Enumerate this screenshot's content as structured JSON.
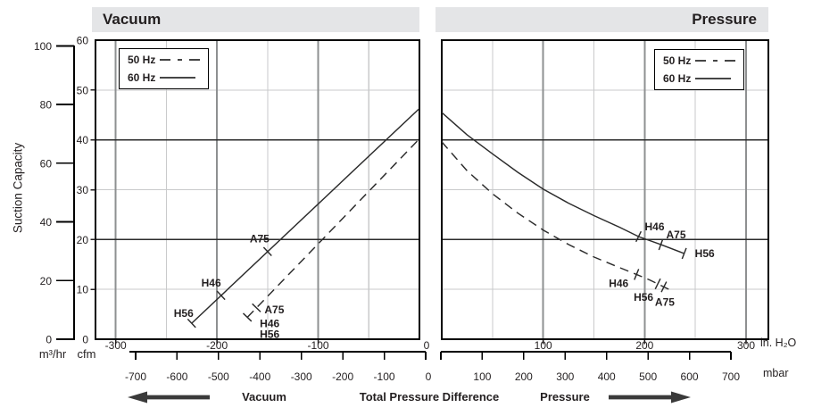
{
  "headers": {
    "vacuum": "Vacuum",
    "pressure": "Pressure"
  },
  "y_axis": {
    "title": "Suction Capacity",
    "unit_left": "m³/hr",
    "unit_right": "cfm",
    "m3hr_ticks": [
      0,
      20,
      40,
      60,
      80,
      100
    ],
    "cfm_ticks": [
      0,
      10,
      20,
      30,
      40,
      50,
      60
    ]
  },
  "x_axis": {
    "unit_primary": "in. H₂O",
    "unit_secondary": "mbar",
    "zero_label": "0",
    "direction_left_label": "Vacuum",
    "center_label": "Total Pressure Difference",
    "direction_right_label": "Pressure"
  },
  "legend": {
    "items": [
      {
        "label": "50 Hz",
        "style": "dashed"
      },
      {
        "label": "60 Hz",
        "style": "solid"
      }
    ]
  },
  "colors": {
    "header_bar": "#e4e5e7",
    "grid_minor": "#c9cacb",
    "grid_major_v": "#8e9091",
    "grid_major_h": "#2b2b2b",
    "border": "#000000",
    "line": "#2b2b2b",
    "text": "#231f20"
  },
  "chart_data": [
    {
      "id": "vacuum-panel",
      "type": "line",
      "title": "Vacuum",
      "xlabel": "Total Pressure Difference",
      "ylabel": "Suction Capacity",
      "x_unit": "in. H2O",
      "x_range": [
        -320,
        0
      ],
      "x_ticks": [
        -300,
        -200,
        -100
      ],
      "x_minor": [
        -250,
        -150,
        -50
      ],
      "mbar_ticks": [
        -700,
        -600,
        -500,
        -400,
        -300,
        -200,
        -100,
        0
      ],
      "y_unit": "cfm",
      "y_range": [
        0,
        60
      ],
      "grid": true,
      "legend_position": "top-left",
      "series": [
        {
          "name": "50 Hz",
          "line": "dashed",
          "points": [
            [
              -170,
              4.4
            ],
            [
              0,
              40.2
            ]
          ],
          "markers": [
            {
              "x": -161,
              "y": 6.3,
              "label": "A75",
              "anchor": "start",
              "dx": 9,
              "dy": 6
            },
            {
              "x": -170,
              "y": 4.4,
              "label": "H46",
              "anchor": "start",
              "dx": 14,
              "dy": 11
            },
            {
              "x": -170,
              "y": 4.4,
              "label": "H56",
              "anchor": "start",
              "dx": 14,
              "dy": 23,
              "tick": false
            }
          ]
        },
        {
          "name": "60 Hz",
          "line": "solid",
          "points": [
            [
              -225,
              3.2
            ],
            [
              0,
              46.3
            ]
          ],
          "markers": [
            {
              "x": -150,
              "y": 17.6,
              "label": "A75",
              "anchor": "end",
              "dx": 2,
              "dy": -10
            },
            {
              "x": -196,
              "y": 8.8,
              "label": "H46",
              "anchor": "end",
              "dx": 0,
              "dy": -10
            },
            {
              "x": -225,
              "y": 3.2,
              "label": "H56",
              "anchor": "end",
              "dx": 2,
              "dy": -7
            }
          ]
        }
      ]
    },
    {
      "id": "pressure-panel",
      "type": "line",
      "title": "Pressure",
      "xlabel": "Total Pressure Difference",
      "ylabel": "Suction Capacity",
      "x_unit": "in. H2O",
      "x_range": [
        0,
        322
      ],
      "x_ticks": [
        100,
        200,
        300
      ],
      "x_minor": [
        50,
        150,
        250
      ],
      "mbar_ticks": [
        0,
        100,
        200,
        300,
        400,
        500,
        600,
        700
      ],
      "y_unit": "cfm",
      "y_range": [
        0,
        60
      ],
      "grid": true,
      "legend_position": "top-right",
      "series": [
        {
          "name": "50 Hz",
          "line": "dashed",
          "points": [
            [
              0,
              39.6
            ],
            [
              25,
              33.8
            ],
            [
              50,
              29.2
            ],
            [
              75,
              25.3
            ],
            [
              100,
              21.9
            ],
            [
              125,
              19.0
            ],
            [
              150,
              16.5
            ],
            [
              175,
              14.4
            ],
            [
              192,
              13.0
            ],
            [
              205,
              11.9
            ],
            [
              213,
              11.1
            ],
            [
              224,
              10.0
            ]
          ],
          "markers": [
            {
              "x": 192,
              "y": 13.0,
              "label": "H46",
              "anchor": "end",
              "dx": -9,
              "dy": 14
            },
            {
              "x": 213,
              "y": 11.1,
              "label": "H56",
              "anchor": "end",
              "dx": -5,
              "dy": 19
            },
            {
              "x": 219,
              "y": 10.5,
              "label": "A75",
              "anchor": "start",
              "dx": -10,
              "dy": 21
            }
          ]
        },
        {
          "name": "60 Hz",
          "line": "solid",
          "points": [
            [
              0,
              45.5
            ],
            [
              25,
              41.0
            ],
            [
              50,
              37.2
            ],
            [
              75,
              33.5
            ],
            [
              100,
              30.1
            ],
            [
              125,
              27.3
            ],
            [
              150,
              24.8
            ],
            [
              175,
              22.5
            ],
            [
              194,
              20.6
            ],
            [
              216,
              19.0
            ],
            [
              239,
              17.2
            ]
          ],
          "markers": [
            {
              "x": 194,
              "y": 20.6,
              "label": "H46",
              "anchor": "start",
              "dx": 7,
              "dy": -7
            },
            {
              "x": 216,
              "y": 19.0,
              "label": "A75",
              "anchor": "start",
              "dx": 6,
              "dy": -7
            },
            {
              "x": 239,
              "y": 17.2,
              "label": "H56",
              "anchor": "start",
              "dx": 12,
              "dy": 4
            }
          ]
        }
      ]
    }
  ]
}
